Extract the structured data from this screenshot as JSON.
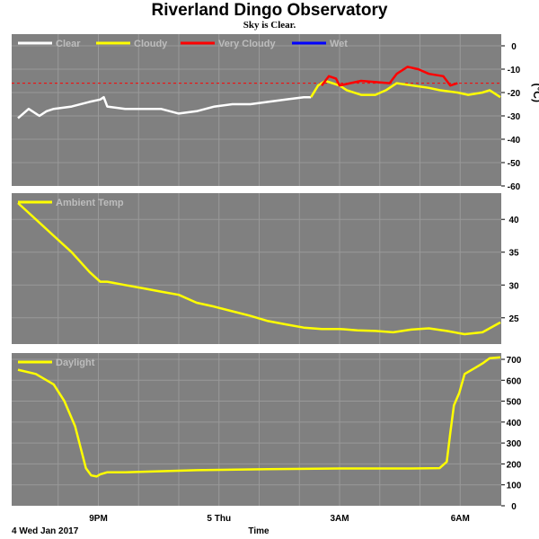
{
  "title": "Riverland Dingo Observatory",
  "subtitle": "Sky is Clear.",
  "date_label": "4 Wed Jan 2017",
  "time_label": "Time",
  "x_ticks": [
    "9PM",
    "5 Thu",
    "3AM",
    "6AM"
  ],
  "colors": {
    "background": "#ffffff",
    "plot_bg": "#808080",
    "grid": "#999999",
    "clear": "#ffffff",
    "cloudy": "#ffff00",
    "very_cloudy": "#ff0000",
    "wet": "#0000ff",
    "threshold": "#ff0000"
  },
  "chart_data": [
    {
      "type": "line",
      "ylabel": "(°C)",
      "ylim": [
        -60,
        5
      ],
      "yticks": [
        0,
        -10,
        -20,
        -30,
        -40,
        -50,
        -60
      ],
      "threshold": -16,
      "x_unit": "hours since 6PM, 4 Jan 2017",
      "xlim": [
        0,
        13.5
      ],
      "legend": [
        "Clear",
        "Cloudy",
        "Very Cloudy",
        "Wet"
      ],
      "series": [
        {
          "name": "Clear",
          "color": "#ffffff",
          "x": [
            0,
            0.3,
            0.6,
            0.8,
            1.0,
            1.5,
            2.0,
            2.3,
            2.4,
            2.5,
            3.0,
            4.0,
            4.5,
            5.0,
            5.5,
            6.0,
            6.5,
            7.0,
            7.5,
            8.0,
            8.2
          ],
          "y": [
            -31,
            -27,
            -30,
            -28,
            -27,
            -26,
            -24,
            -23,
            -22,
            -26,
            -27,
            -27,
            -29,
            -28,
            -26,
            -25,
            -25,
            -24,
            -23,
            -22,
            -22
          ]
        },
        {
          "name": "Cloudy",
          "color": "#ffff00",
          "x": [
            8.2,
            8.4,
            8.6,
            9.0,
            9.2,
            9.6,
            10.0,
            10.3,
            10.6,
            11.5,
            11.8,
            12.3,
            12.6,
            13.0,
            13.2,
            13.5
          ],
          "y": [
            -22,
            -17,
            -15,
            -17,
            -19,
            -21,
            -21,
            -19,
            -16,
            -18,
            -19,
            -20,
            -21,
            -20,
            -19,
            -22
          ]
        },
        {
          "name": "Very Cloudy",
          "color": "#ff0000",
          "x": [
            8.5,
            8.7,
            8.9,
            9.0,
            9.3,
            9.6,
            10.4,
            10.6,
            10.9,
            11.2,
            11.5,
            11.9,
            12.1,
            12.3
          ],
          "y": [
            -17,
            -13,
            -14,
            -17,
            -16,
            -15,
            -16,
            -12,
            -9,
            -10,
            -12,
            -13,
            -17,
            -16
          ]
        }
      ]
    },
    {
      "type": "line",
      "ylim": [
        21,
        44
      ],
      "yticks": [
        25,
        30,
        35,
        40
      ],
      "x_unit": "hours since 6PM, 4 Jan 2017",
      "xlim": [
        0,
        13.5
      ],
      "legend": [
        "Ambient Temp"
      ],
      "series": [
        {
          "name": "Ambient Temp",
          "color": "#ffff00",
          "x": [
            0,
            0.5,
            1.0,
            1.5,
            2.0,
            2.3,
            2.5,
            3.0,
            3.5,
            4.0,
            4.5,
            5.0,
            5.5,
            6.0,
            6.5,
            7.0,
            7.5,
            8.0,
            8.5,
            9.0,
            9.5,
            10.0,
            10.5,
            11.0,
            11.5,
            12.0,
            12.5,
            13.0,
            13.5
          ],
          "y": [
            42.5,
            40,
            37.5,
            35,
            32,
            30.5,
            30.5,
            30,
            29.5,
            29,
            28.5,
            27.3,
            26.7,
            26,
            25.3,
            24.5,
            24,
            23.5,
            23.3,
            23.3,
            23.1,
            23,
            22.8,
            23.2,
            23.4,
            23.0,
            22.5,
            22.8,
            24.3
          ]
        }
      ]
    },
    {
      "type": "line",
      "ylim": [
        0,
        730
      ],
      "yticks": [
        0,
        100,
        200,
        300,
        400,
        500,
        600,
        700
      ],
      "x_unit": "hours since 6PM, 4 Jan 2017",
      "xlim": [
        0,
        13.5
      ],
      "legend": [
        "Daylight"
      ],
      "series": [
        {
          "name": "Daylight",
          "color": "#ffff00",
          "x": [
            0,
            0.5,
            1.0,
            1.3,
            1.6,
            1.9,
            2.05,
            2.2,
            2.3,
            2.5,
            3.0,
            5.0,
            7.0,
            9.0,
            11.0,
            11.8,
            12.0,
            12.1,
            12.2,
            12.35,
            12.5,
            12.8,
            13.0,
            13.2,
            13.5
          ],
          "y": [
            650,
            630,
            580,
            500,
            380,
            180,
            145,
            140,
            150,
            160,
            160,
            170,
            175,
            178,
            178,
            180,
            210,
            350,
            480,
            540,
            630,
            660,
            680,
            705,
            710
          ]
        }
      ]
    }
  ]
}
